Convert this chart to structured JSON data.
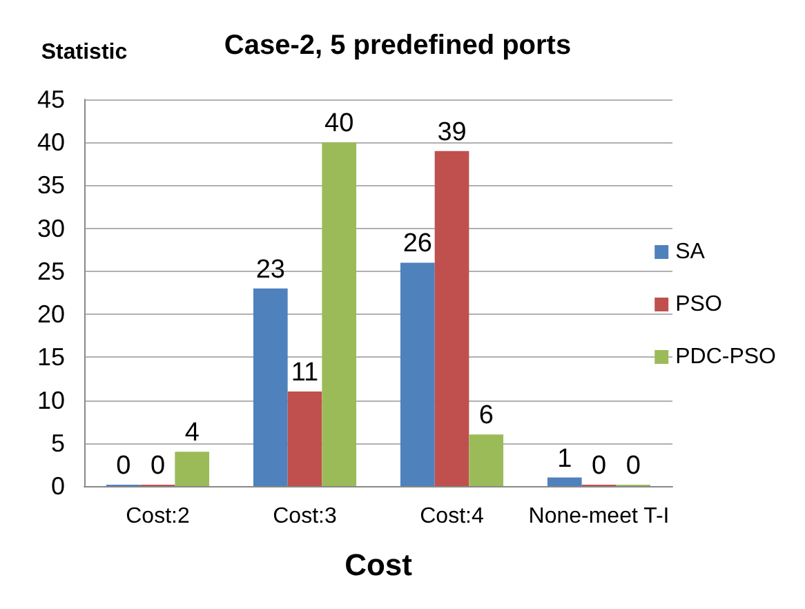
{
  "chart_data": {
    "type": "bar",
    "title": "Case-2, 5 predefined ports",
    "xlabel": "Cost",
    "ylabel": "Statistic",
    "categories": [
      "Cost:2",
      "Cost:3",
      "Cost:4",
      "None-meet T-I"
    ],
    "series": [
      {
        "name": "SA",
        "color": "#4f81bd",
        "values": [
          0,
          23,
          26,
          1
        ]
      },
      {
        "name": "PSO",
        "color": "#c0504d",
        "values": [
          0,
          11,
          39,
          0
        ]
      },
      {
        "name": "PDC-PSO",
        "color": "#9bbb59",
        "values": [
          4,
          40,
          6,
          0
        ]
      }
    ],
    "ylim": [
      0,
      45
    ],
    "yticks": [
      0,
      5,
      10,
      15,
      20,
      25,
      30,
      35,
      40,
      45
    ],
    "grid": "y",
    "legend": "right",
    "data_labels": true
  }
}
